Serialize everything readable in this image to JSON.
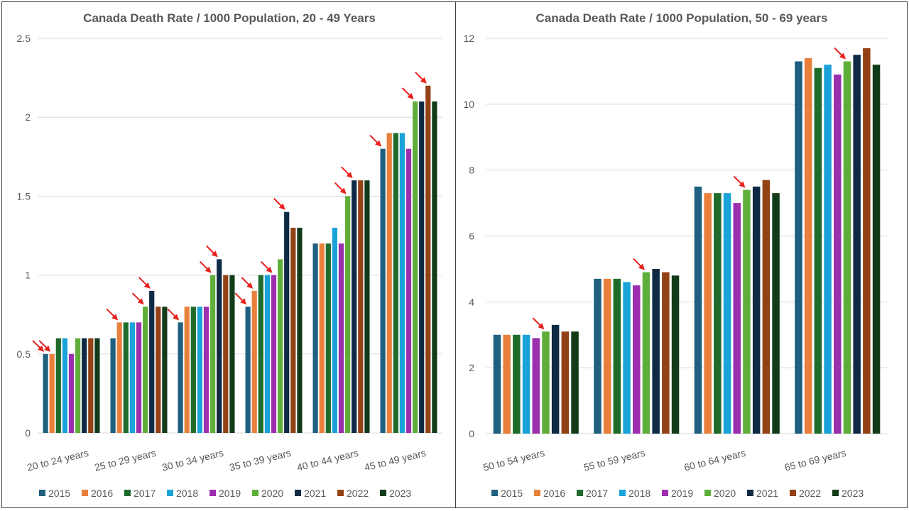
{
  "series_colors": {
    "2015": "#1f5f7f",
    "2016": "#e8803c",
    "2017": "#1e6b2c",
    "2018": "#1aa3d9",
    "2019": "#9b2fae",
    "2020": "#5fae3a",
    "2021": "#0f2a44",
    "2022": "#934215",
    "2023": "#123b1a"
  },
  "chart_data": [
    {
      "type": "bar",
      "title": "Canada Death Rate / 1000 Population, 20 - 49 Years",
      "categories": [
        "20 to 24 years",
        "25 to 29 years",
        "30 to 34 years",
        "35 to 39 years",
        "40 to 44 years",
        "45 to 49 years"
      ],
      "ylim": [
        0,
        2.5
      ],
      "yticks": [
        "0",
        "0.5",
        "1",
        "1.5",
        "2",
        "2.5"
      ],
      "ytick_values": [
        0,
        0.5,
        1,
        1.5,
        2,
        2.5
      ],
      "grid": true,
      "legend_placement": "bottom",
      "series": [
        {
          "name": "2015",
          "values": [
            0.5,
            0.6,
            0.7,
            0.8,
            1.2,
            1.8
          ]
        },
        {
          "name": "2016",
          "values": [
            0.5,
            0.7,
            0.8,
            0.9,
            1.2,
            1.9
          ]
        },
        {
          "name": "2017",
          "values": [
            0.6,
            0.7,
            0.8,
            1.0,
            1.2,
            1.9
          ]
        },
        {
          "name": "2018",
          "values": [
            0.6,
            0.7,
            0.8,
            1.0,
            1.3,
            1.9
          ]
        },
        {
          "name": "2019",
          "values": [
            0.5,
            0.7,
            0.8,
            1.0,
            1.2,
            1.8
          ]
        },
        {
          "name": "2020",
          "values": [
            0.6,
            0.8,
            1.0,
            1.1,
            1.5,
            2.1
          ]
        },
        {
          "name": "2021",
          "values": [
            0.6,
            0.9,
            1.1,
            1.4,
            1.6,
            2.1
          ]
        },
        {
          "name": "2022",
          "values": [
            0.6,
            0.8,
            1.0,
            1.3,
            1.6,
            2.2
          ]
        },
        {
          "name": "2023",
          "values": [
            0.6,
            0.8,
            1.0,
            1.3,
            1.6,
            2.1
          ]
        }
      ],
      "annotations": [
        {
          "category": "20 to 24 years",
          "series": "2015",
          "mark": "red-arrow"
        },
        {
          "category": "20 to 24 years",
          "series": "2016",
          "mark": "red-arrow"
        },
        {
          "category": "25 to 29 years",
          "series": "2016",
          "mark": "red-arrow"
        },
        {
          "category": "25 to 29 years",
          "series": "2020",
          "mark": "red-arrow"
        },
        {
          "category": "25 to 29 years",
          "series": "2021",
          "mark": "red-arrow"
        },
        {
          "category": "30 to 34 years",
          "series": "2015",
          "mark": "red-arrow"
        },
        {
          "category": "30 to 34 years",
          "series": "2020",
          "mark": "red-arrow"
        },
        {
          "category": "30 to 34 years",
          "series": "2021",
          "mark": "red-arrow"
        },
        {
          "category": "35 to 39 years",
          "series": "2015",
          "mark": "red-arrow"
        },
        {
          "category": "35 to 39 years",
          "series": "2016",
          "mark": "red-arrow"
        },
        {
          "category": "35 to 39 years",
          "series": "2019",
          "mark": "red-arrow"
        },
        {
          "category": "35 to 39 years",
          "series": "2021",
          "mark": "red-arrow"
        },
        {
          "category": "40 to 44 years",
          "series": "2020",
          "mark": "red-arrow"
        },
        {
          "category": "40 to 44 years",
          "series": "2021",
          "mark": "red-arrow"
        },
        {
          "category": "45 to 49 years",
          "series": "2015",
          "mark": "red-arrow"
        },
        {
          "category": "45 to 49 years",
          "series": "2020",
          "mark": "red-arrow"
        },
        {
          "category": "45 to 49 years",
          "series": "2022",
          "mark": "red-arrow"
        }
      ]
    },
    {
      "type": "bar",
      "title": "Canada Death Rate / 1000 Population, 50 - 69 years",
      "categories": [
        "50 to 54 years",
        "55 to 59 years",
        "60 to 64 years",
        "65 to 69 years"
      ],
      "ylim": [
        0,
        12
      ],
      "yticks": [
        "0",
        "2",
        "4",
        "6",
        "8",
        "10",
        "12"
      ],
      "ytick_values": [
        0,
        2,
        4,
        6,
        8,
        10,
        12
      ],
      "grid": true,
      "legend_placement": "bottom",
      "series": [
        {
          "name": "2015",
          "values": [
            3.0,
            4.7,
            7.5,
            11.3
          ]
        },
        {
          "name": "2016",
          "values": [
            3.0,
            4.7,
            7.3,
            11.4
          ]
        },
        {
          "name": "2017",
          "values": [
            3.0,
            4.7,
            7.3,
            11.1
          ]
        },
        {
          "name": "2018",
          "values": [
            3.0,
            4.6,
            7.3,
            11.2
          ]
        },
        {
          "name": "2019",
          "values": [
            2.9,
            4.5,
            7.0,
            10.9
          ]
        },
        {
          "name": "2020",
          "values": [
            3.1,
            4.9,
            7.4,
            11.3
          ]
        },
        {
          "name": "2021",
          "values": [
            3.3,
            5.0,
            7.5,
            11.5
          ]
        },
        {
          "name": "2022",
          "values": [
            3.1,
            4.9,
            7.7,
            11.7
          ]
        },
        {
          "name": "2023",
          "values": [
            3.1,
            4.8,
            7.3,
            11.2
          ]
        }
      ],
      "annotations": [
        {
          "category": "50 to 54 years",
          "series": "2020",
          "mark": "red-arrow"
        },
        {
          "category": "55 to 59 years",
          "series": "2020",
          "mark": "red-arrow"
        },
        {
          "category": "60 to 64 years",
          "series": "2020",
          "mark": "red-arrow"
        },
        {
          "category": "65 to 69 years",
          "series": "2020",
          "mark": "red-arrow"
        }
      ]
    }
  ]
}
